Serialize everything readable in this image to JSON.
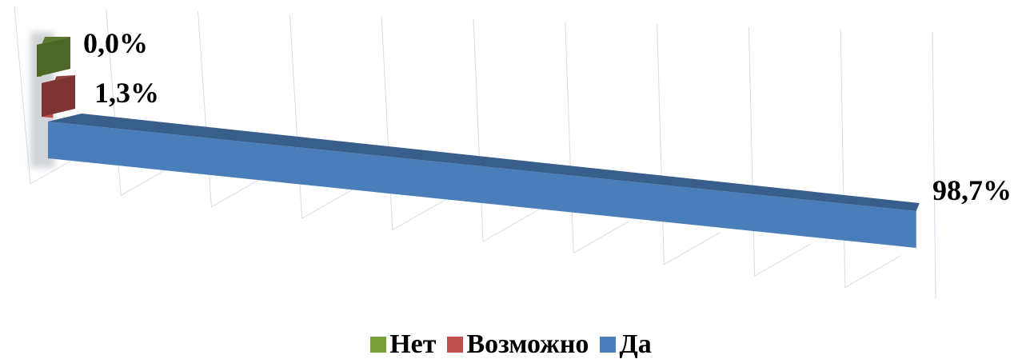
{
  "chart_data": {
    "type": "bar",
    "orientation": "horizontal",
    "style": "3d",
    "title": "",
    "xlabel": "",
    "ylabel": "",
    "grid": true,
    "legend_position": "bottom",
    "xlim": [
      0,
      100
    ],
    "series": [
      {
        "name": "Нет",
        "value": 0.0,
        "label": "0,0%",
        "color": "#77a03a"
      },
      {
        "name": "Возможно",
        "value": 1.3,
        "label": "1,3%",
        "color": "#c0504d"
      },
      {
        "name": "Да",
        "value": 98.7,
        "label": "98,7%",
        "color": "#4a7ebb"
      }
    ]
  }
}
